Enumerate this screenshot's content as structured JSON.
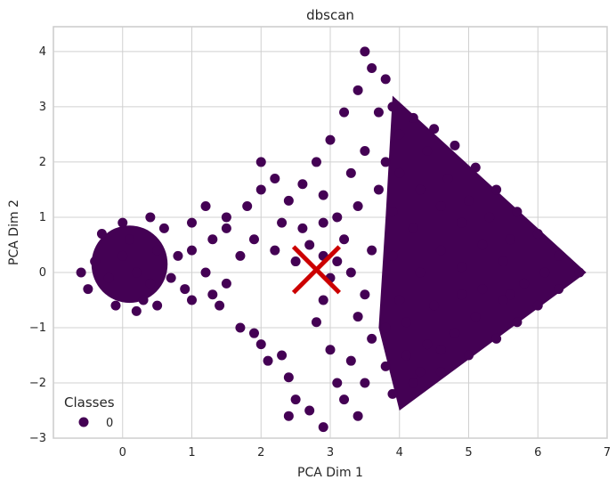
{
  "chart_data": {
    "type": "scatter",
    "title": "dbscan",
    "xlabel": "PCA Dim 1",
    "ylabel": "PCA Dim 2",
    "xlim": [
      -1.0,
      7.0
    ],
    "ylim": [
      -3.0,
      4.45
    ],
    "xticks": [
      "0",
      "1",
      "2",
      "3",
      "4",
      "5",
      "6",
      "7"
    ],
    "yticks": [
      "−3",
      "−2",
      "−1",
      "0",
      "1",
      "2",
      "3",
      "4"
    ],
    "grid": true,
    "legend": {
      "title": "Classes",
      "placement": "bottom-left",
      "entries": [
        "0"
      ]
    },
    "colors": {
      "cluster": "#440154",
      "centroid": "#cc0000",
      "grid": "#d0d0d0",
      "frame": "#cccccc"
    },
    "series": [
      {
        "name": "0",
        "points": [
          [
            0.2,
            0.0
          ],
          [
            0.0,
            0.3
          ],
          [
            0.4,
            -0.2
          ],
          [
            -0.2,
            -0.1
          ],
          [
            0.1,
            0.6
          ],
          [
            0.5,
            0.4
          ],
          [
            -0.4,
            0.2
          ],
          [
            0.3,
            -0.5
          ],
          [
            0.7,
            -0.1
          ],
          [
            -0.5,
            -0.3
          ],
          [
            0.0,
            0.9
          ],
          [
            0.6,
            0.8
          ],
          [
            -0.3,
            0.7
          ],
          [
            0.2,
            -0.7
          ],
          [
            0.8,
            0.3
          ],
          [
            -0.6,
            0.0
          ],
          [
            0.9,
            -0.3
          ],
          [
            0.5,
            -0.6
          ],
          [
            -0.1,
            -0.6
          ],
          [
            0.4,
            1.0
          ],
          [
            1.0,
            -0.5
          ],
          [
            1.2,
            0.0
          ],
          [
            1.0,
            0.4
          ],
          [
            1.3,
            -0.4
          ],
          [
            1.4,
            -0.6
          ],
          [
            1.5,
            -0.2
          ],
          [
            1.7,
            -1.0
          ],
          [
            1.9,
            -1.1
          ],
          [
            2.0,
            -1.3
          ],
          [
            2.1,
            -1.6
          ],
          [
            2.3,
            -1.5
          ],
          [
            2.4,
            -1.9
          ],
          [
            2.5,
            -2.3
          ],
          [
            2.4,
            -2.6
          ],
          [
            2.7,
            -2.5
          ],
          [
            2.9,
            -2.8
          ],
          [
            1.0,
            0.9
          ],
          [
            1.2,
            1.2
          ],
          [
            1.3,
            0.6
          ],
          [
            1.5,
            0.8
          ],
          [
            1.5,
            1.0
          ],
          [
            1.7,
            0.3
          ],
          [
            1.9,
            0.6
          ],
          [
            1.8,
            1.2
          ],
          [
            2.0,
            1.5
          ],
          [
            2.0,
            2.0
          ],
          [
            2.2,
            1.7
          ],
          [
            2.4,
            1.3
          ],
          [
            2.3,
            0.9
          ],
          [
            2.6,
            0.8
          ],
          [
            2.2,
            0.4
          ],
          [
            2.5,
            0.2
          ],
          [
            2.7,
            0.5
          ],
          [
            2.9,
            0.9
          ],
          [
            2.6,
            1.6
          ],
          [
            2.8,
            2.0
          ],
          [
            3.0,
            2.4
          ],
          [
            2.9,
            1.4
          ],
          [
            3.1,
            1.0
          ],
          [
            3.2,
            0.6
          ],
          [
            3.3,
            1.8
          ],
          [
            3.2,
            2.9
          ],
          [
            3.4,
            3.3
          ],
          [
            3.5,
            4.0
          ],
          [
            3.6,
            3.7
          ],
          [
            3.8,
            3.5
          ],
          [
            3.7,
            2.9
          ],
          [
            3.9,
            3.0
          ],
          [
            3.5,
            2.2
          ],
          [
            3.7,
            1.5
          ],
          [
            3.4,
            1.2
          ],
          [
            3.6,
            0.4
          ],
          [
            3.3,
            0.0
          ],
          [
            3.5,
            -0.4
          ],
          [
            3.4,
            -0.8
          ],
          [
            3.6,
            -1.2
          ],
          [
            3.3,
            -1.6
          ],
          [
            3.5,
            -2.0
          ],
          [
            3.2,
            -2.3
          ],
          [
            3.4,
            -2.6
          ],
          [
            3.1,
            -2.0
          ],
          [
            3.0,
            -1.4
          ],
          [
            2.8,
            -0.9
          ],
          [
            2.9,
            -0.5
          ],
          [
            3.0,
            -0.1
          ],
          [
            2.9,
            0.3
          ],
          [
            3.1,
            0.2
          ],
          [
            4.0,
            2.5
          ],
          [
            4.2,
            2.8
          ],
          [
            4.5,
            2.6
          ],
          [
            4.8,
            2.3
          ],
          [
            5.1,
            1.9
          ],
          [
            5.4,
            1.5
          ],
          [
            5.7,
            1.1
          ],
          [
            6.0,
            0.7
          ],
          [
            6.3,
            0.3
          ],
          [
            6.6,
            0.0
          ],
          [
            6.3,
            -0.3
          ],
          [
            6.0,
            -0.6
          ],
          [
            5.7,
            -0.9
          ],
          [
            5.4,
            -1.2
          ],
          [
            5.0,
            -1.5
          ],
          [
            4.6,
            -1.8
          ],
          [
            4.2,
            -2.0
          ],
          [
            3.9,
            -2.2
          ],
          [
            4.0,
            1.8
          ],
          [
            4.3,
            1.5
          ],
          [
            4.6,
            1.2
          ],
          [
            4.9,
            0.9
          ],
          [
            5.2,
            0.5
          ],
          [
            5.5,
            0.2
          ],
          [
            5.8,
            -0.2
          ],
          [
            5.5,
            -0.5
          ],
          [
            5.1,
            -0.8
          ],
          [
            4.8,
            -1.1
          ],
          [
            4.4,
            -1.3
          ],
          [
            4.1,
            -1.5
          ],
          [
            3.8,
            -1.0
          ],
          [
            4.0,
            -0.5
          ],
          [
            4.3,
            0.0
          ],
          [
            4.6,
            0.4
          ],
          [
            4.9,
            0.1
          ],
          [
            5.2,
            -0.3
          ],
          [
            4.5,
            -0.6
          ],
          [
            4.2,
            0.8
          ],
          [
            3.9,
            1.1
          ],
          [
            4.7,
            1.7
          ],
          [
            5.0,
            1.3
          ],
          [
            5.3,
            1.0
          ],
          [
            5.6,
            0.6
          ],
          [
            4.4,
            2.2
          ],
          [
            3.9,
            0.3
          ],
          [
            4.1,
            -0.9
          ],
          [
            4.9,
            -0.4
          ],
          [
            5.6,
            -0.4
          ],
          [
            6.1,
            0.0
          ],
          [
            4.6,
            -1.4
          ],
          [
            4.3,
            -1.8
          ],
          [
            3.8,
            -1.7
          ],
          [
            3.8,
            2.0
          ]
        ]
      }
    ],
    "centroid": {
      "x": 2.8,
      "y": 0.05,
      "marker": "x"
    }
  }
}
